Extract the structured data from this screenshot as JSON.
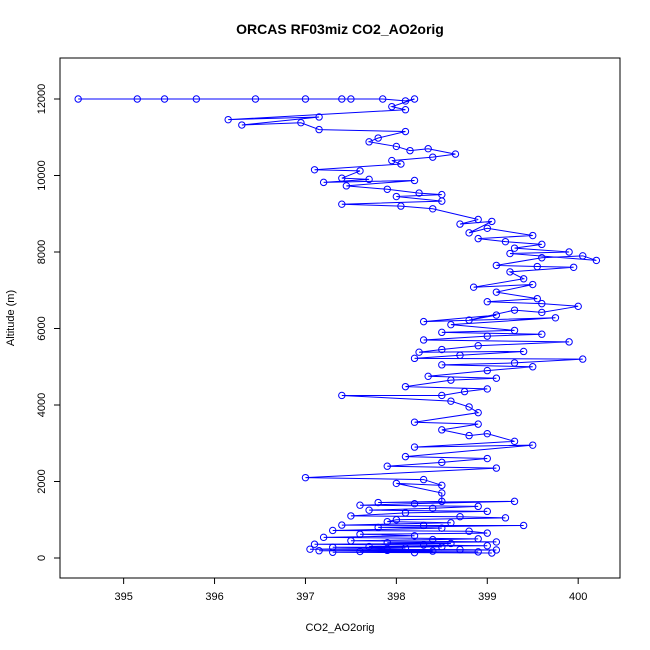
{
  "chart_data": {
    "type": "line",
    "title": "ORCAS RF03miz CO2_AO2orig",
    "x_label": "CO2_AO2orig",
    "y_label": "Altitude (m)",
    "color": "#0000ff",
    "xlim": [
      394.3,
      400.46
    ],
    "ylim": [
      -523,
      13072
    ],
    "xticks": [
      395,
      396,
      397,
      398,
      399,
      400
    ],
    "yticks": [
      0,
      2000,
      4000,
      6000,
      8000,
      10000,
      12000
    ],
    "x": [
      394.5,
      395.15,
      395.45,
      395.8,
      396.45,
      397.0,
      397.4,
      397.5,
      397.85,
      398.1,
      398.2,
      397.95,
      398.1,
      396.15,
      397.15,
      396.3,
      396.95,
      397.15,
      398.1,
      397.8,
      397.7,
      398.0,
      398.15,
      398.35,
      398.65,
      398.4,
      397.95,
      398.05,
      397.1,
      397.6,
      397.4,
      397.7,
      397.2,
      398.2,
      397.45,
      397.9,
      398.25,
      398.5,
      398.0,
      398.5,
      397.4,
      398.05,
      398.4,
      398.9,
      398.7,
      399.05,
      398.8,
      399.0,
      399.5,
      398.9,
      399.2,
      399.6,
      399.3,
      399.9,
      399.25,
      400.2,
      400.05,
      399.6,
      399.1,
      399.55,
      399.95,
      399.25,
      399.4,
      398.85,
      399.5,
      399.1,
      399.55,
      399.0,
      399.6,
      400.0,
      399.6,
      399.3,
      398.8,
      399.1,
      398.3,
      399.75,
      398.6,
      399.3,
      398.5,
      399.6,
      399.0,
      398.3,
      399.9,
      398.9,
      398.5,
      398.25,
      399.4,
      398.7,
      398.2,
      400.05,
      399.3,
      398.5,
      399.5,
      399.0,
      398.35,
      399.1,
      398.6,
      398.1,
      399.0,
      398.75,
      398.5,
      397.4,
      398.6,
      398.8,
      398.9,
      398.2,
      398.9,
      398.5,
      398.8,
      399.0,
      399.3,
      398.2,
      399.5,
      398.1,
      399.0,
      398.5,
      397.9,
      399.1,
      397.0,
      398.3,
      398.5,
      398.0,
      398.5,
      398.5,
      397.8,
      399.3,
      398.2,
      397.6,
      398.9,
      398.4,
      397.7,
      399.0,
      398.1,
      397.5,
      398.7,
      399.2,
      398.0,
      397.9,
      398.6,
      397.4,
      398.3,
      399.4,
      397.8,
      398.5,
      397.3,
      398.8,
      399.0,
      397.6,
      398.2,
      397.2,
      398.9,
      398.4,
      397.5,
      399.1,
      397.9,
      398.6,
      397.1,
      398.3,
      399.0,
      397.7,
      398.5,
      397.3,
      398.1,
      397.05,
      398.7,
      399.1,
      397.9,
      397.15,
      398.4,
      397.6,
      398.9,
      397.3,
      398.2,
      399.05
    ],
    "values": [
      12000,
      12000,
      12000,
      12000,
      12000,
      12000,
      12000,
      12000,
      12000,
      11950,
      12000,
      11800,
      11720,
      11460,
      11530,
      11320,
      11380,
      11200,
      11150,
      10980,
      10880,
      10760,
      10650,
      10700,
      10560,
      10480,
      10390,
      10300,
      10150,
      10120,
      9930,
      9900,
      9820,
      9870,
      9730,
      9640,
      9540,
      9500,
      9450,
      9330,
      9250,
      9200,
      9130,
      8850,
      8730,
      8800,
      8500,
      8620,
      8430,
      8350,
      8270,
      8200,
      8100,
      8000,
      7960,
      7780,
      7900,
      7850,
      7650,
      7620,
      7600,
      7480,
      7300,
      7080,
      7150,
      6950,
      6780,
      6700,
      6650,
      6580,
      6420,
      6480,
      6220,
      6350,
      6180,
      6280,
      6100,
      5950,
      5900,
      5850,
      5800,
      5700,
      5650,
      5550,
      5450,
      5380,
      5400,
      5300,
      5220,
      5200,
      5100,
      5050,
      5000,
      4900,
      4750,
      4700,
      4650,
      4480,
      4420,
      4350,
      4250,
      4250,
      4100,
      3950,
      3800,
      3550,
      3500,
      3350,
      3200,
      3250,
      3050,
      2900,
      2950,
      2650,
      2600,
      2500,
      2400,
      2350,
      2100,
      2050,
      1900,
      1950,
      1700,
      1480,
      1450,
      1480,
      1420,
      1380,
      1350,
      1300,
      1250,
      1220,
      1180,
      1100,
      1080,
      1050,
      1000,
      950,
      920,
      860,
      850,
      850,
      800,
      780,
      720,
      700,
      650,
      620,
      580,
      540,
      500,
      480,
      450,
      420,
      400,
      380,
      360,
      340,
      320,
      300,
      290,
      280,
      260,
      230,
      220,
      210,
      200,
      190,
      180,
      170,
      160,
      150,
      140,
      130
    ]
  }
}
